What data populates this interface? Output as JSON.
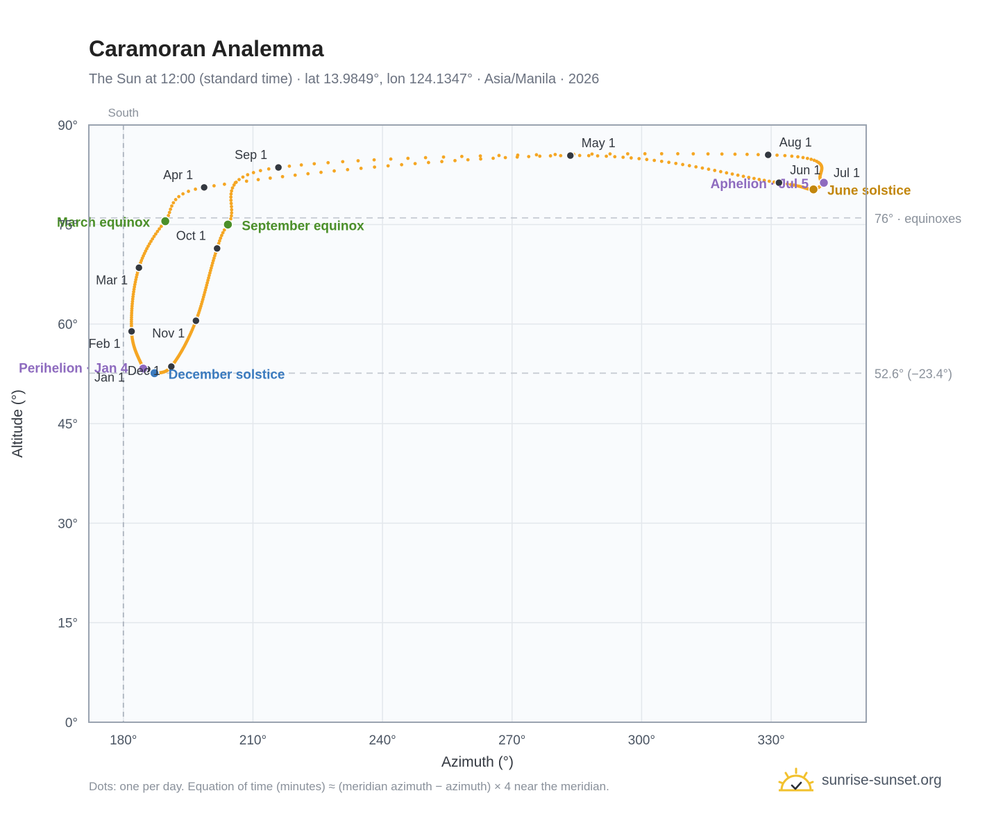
{
  "header": {
    "title": "Caramoran Analemma",
    "subtitle": "The Sun at 12:00 (standard time) · lat 13.9849°, lon 124.1347° · Asia/Manila · 2026"
  },
  "footer": {
    "note": "Dots: one per day. Equation of time (minutes) ≈ (meridian azimuth − azimuth) × 4 near the meridian.",
    "brand": "sunrise-sunset.org"
  },
  "colors": {
    "curve": "#f5a623",
    "month_marker": "#333840",
    "equinox": "#4b8f29",
    "june_solstice": "#c2860c",
    "december_solstice": "#3b7bbf",
    "perihelion_aphelion": "#8e6bbf",
    "reference_line": "#c4c9d1",
    "plot_background": "#f9fbfd",
    "frame": "#9aa3b0"
  },
  "chart_data": {
    "type": "scatter",
    "title": "Caramoran Analemma",
    "xlabel": "Azimuth (°)",
    "ylabel": "Altitude (°)",
    "xlim": [
      172,
      352
    ],
    "ylim": [
      0,
      90
    ],
    "x_ticks": [
      180,
      210,
      240,
      270,
      300,
      330
    ],
    "x_tick_labels": [
      "180°",
      "210°",
      "240°",
      "270°",
      "300°",
      "330°"
    ],
    "y_ticks": [
      0,
      15,
      30,
      45,
      60,
      75,
      90
    ],
    "y_tick_labels": [
      "0°",
      "15°",
      "30°",
      "45°",
      "60°",
      "75°",
      "90°"
    ],
    "grid": true,
    "meridian": {
      "azimuth": 180,
      "label": "South"
    },
    "reference_lines": [
      {
        "altitude": 76.0,
        "label": "76° · equinoxes"
      },
      {
        "altitude": 52.6,
        "label": "52.6° (−23.4°)"
      }
    ],
    "anchors": [
      {
        "date": "Jan 1",
        "az": 185.5,
        "alt": 53.2
      },
      {
        "date": "Jan 4",
        "az": 184.6,
        "alt": 53.3
      },
      {
        "date": "Feb 1",
        "az": 181.9,
        "alt": 58.9
      },
      {
        "date": "Mar 1",
        "az": 183.6,
        "alt": 68.5
      },
      {
        "date": "Mar 20",
        "az": 189.7,
        "alt": 75.5
      },
      {
        "date": "Apr 1",
        "az": 198.7,
        "alt": 80.6
      },
      {
        "date": "May 1",
        "az": 283.5,
        "alt": 85.4
      },
      {
        "date": "Jun 1",
        "az": 331.8,
        "alt": 81.3
      },
      {
        "date": "Jun 21",
        "az": 339.8,
        "alt": 80.3
      },
      {
        "date": "Jul 1",
        "az": 342.2,
        "alt": 81.3
      },
      {
        "date": "Jul 5",
        "az": 342.2,
        "alt": 81.3
      },
      {
        "date": "Aug 1",
        "az": 329.3,
        "alt": 85.5
      },
      {
        "date": "Sep 1",
        "az": 215.9,
        "alt": 83.6
      },
      {
        "date": "Sep 22",
        "az": 204.2,
        "alt": 75.0
      },
      {
        "date": "Oct 1",
        "az": 201.7,
        "alt": 71.4
      },
      {
        "date": "Nov 1",
        "az": 196.8,
        "alt": 60.5
      },
      {
        "date": "Dec 1",
        "az": 191.1,
        "alt": 53.6
      },
      {
        "date": "Dec 21",
        "az": 187.2,
        "alt": 52.6
      },
      {
        "date": "Jan 1",
        "az": 185.5,
        "alt": 53.2
      }
    ],
    "month_markers": [
      {
        "label": "Jan 1",
        "az": 185.5,
        "alt": 53.2
      },
      {
        "label": "Feb 1",
        "az": 181.9,
        "alt": 58.9
      },
      {
        "label": "Mar 1",
        "az": 183.6,
        "alt": 68.5
      },
      {
        "label": "Apr 1",
        "az": 198.7,
        "alt": 80.6
      },
      {
        "label": "May 1",
        "az": 283.5,
        "alt": 85.4
      },
      {
        "label": "Jun 1",
        "az": 331.8,
        "alt": 81.3
      },
      {
        "label": "Jul 1",
        "az": 342.2,
        "alt": 81.3
      },
      {
        "label": "Aug 1",
        "az": 329.3,
        "alt": 85.5
      },
      {
        "label": "Sep 1",
        "az": 215.9,
        "alt": 83.6
      },
      {
        "label": "Oct 1",
        "az": 201.7,
        "alt": 71.4
      },
      {
        "label": "Nov 1",
        "az": 196.8,
        "alt": 60.5
      },
      {
        "label": "Dec 1",
        "az": 191.1,
        "alt": 53.6
      }
    ],
    "events": [
      {
        "label": "March equinox",
        "az": 189.7,
        "alt": 75.5,
        "kind": "equinox"
      },
      {
        "label": "September equinox",
        "az": 204.2,
        "alt": 75.0,
        "kind": "equinox"
      },
      {
        "label": "June solstice",
        "az": 339.8,
        "alt": 80.3,
        "kind": "june_solstice"
      },
      {
        "label": "December solstice",
        "az": 187.2,
        "alt": 52.6,
        "kind": "december_solstice"
      },
      {
        "label": "Perihelion · Jan 4",
        "az": 184.6,
        "alt": 53.3,
        "kind": "perihelion_aphelion"
      },
      {
        "label": "Aphelion · Jul 5",
        "az": 342.2,
        "alt": 81.3,
        "kind": "perihelion_aphelion"
      }
    ]
  }
}
